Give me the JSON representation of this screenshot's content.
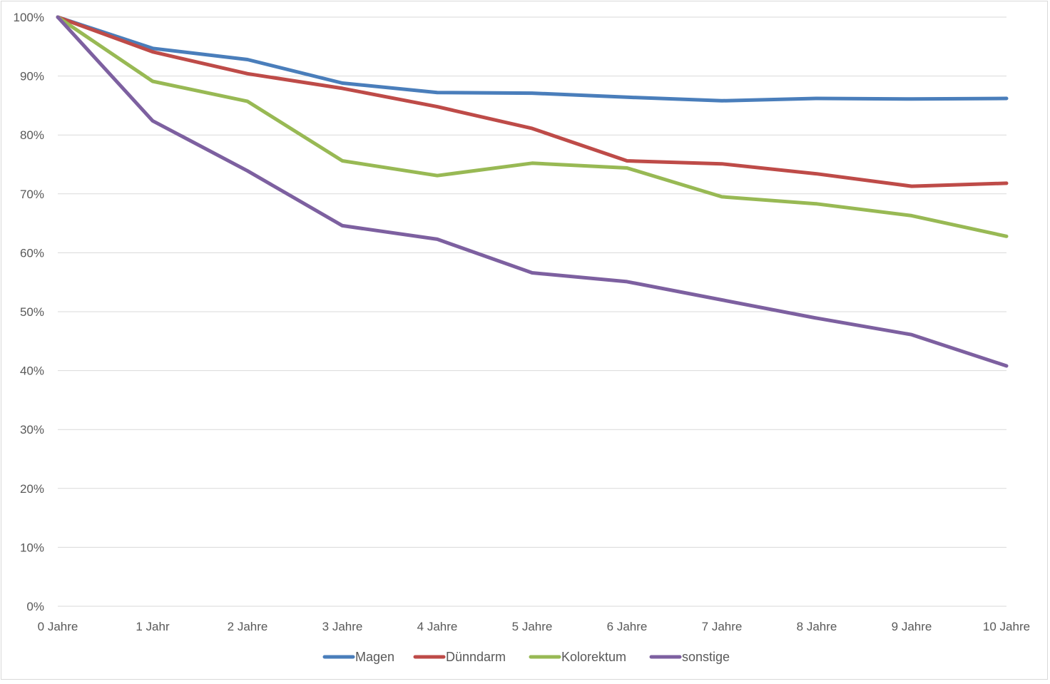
{
  "chart_data": {
    "type": "line",
    "title": "",
    "xlabel": "",
    "ylabel": "",
    "categories": [
      "0 Jahre",
      "1 Jahr",
      "2 Jahre",
      "3 Jahre",
      "4 Jahre",
      "5 Jahre",
      "6 Jahre",
      "7 Jahre",
      "8 Jahre",
      "9 Jahre",
      "10 Jahre"
    ],
    "y_ticks": [
      0,
      10,
      20,
      30,
      40,
      50,
      60,
      70,
      80,
      90,
      100
    ],
    "y_tick_labels": [
      "0%",
      "10%",
      "20%",
      "30%",
      "40%",
      "50%",
      "60%",
      "70%",
      "80%",
      "90%",
      "100%"
    ],
    "ylim": [
      0,
      100
    ],
    "y_unit": "%",
    "grid": true,
    "legend_position": "bottom",
    "series": [
      {
        "name": "Magen",
        "color": "#4a7ebb",
        "values": [
          100,
          94.7,
          92.8,
          88.8,
          87.2,
          87.1,
          86.4,
          85.8,
          86.2,
          86.1,
          86.2
        ]
      },
      {
        "name": "Dünndarm",
        "color": "#be4b48",
        "values": [
          100,
          94.1,
          90.4,
          87.9,
          84.8,
          81.1,
          75.6,
          75.1,
          73.4,
          71.3,
          71.8
        ]
      },
      {
        "name": "Kolorektum",
        "color": "#98b954",
        "values": [
          100,
          89.1,
          85.7,
          75.6,
          73.1,
          75.2,
          74.4,
          69.5,
          68.3,
          66.3,
          62.8
        ]
      },
      {
        "name": "sonstige",
        "color": "#7d60a0",
        "values": [
          100,
          82.4,
          73.9,
          64.6,
          62.3,
          56.6,
          55.1,
          52.0,
          48.9,
          46.1,
          40.8
        ]
      }
    ]
  }
}
